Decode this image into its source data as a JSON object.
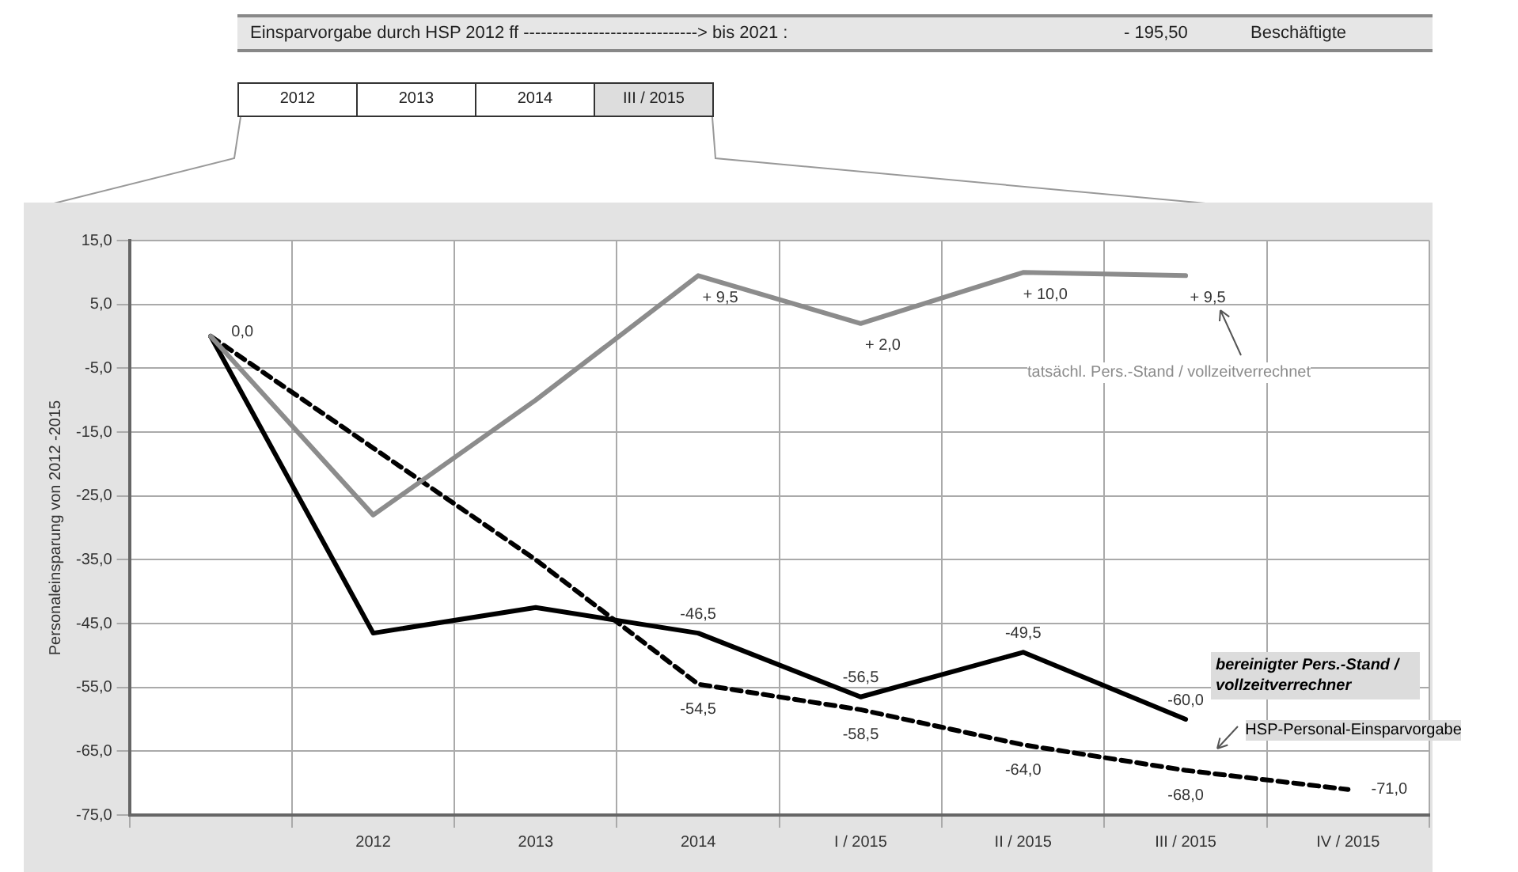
{
  "chart_data": {
    "type": "line",
    "ylabel": "Personaleinsparung von 2012 -2015",
    "categories": [
      null,
      "2012",
      "2013",
      "2014",
      "I / 2015",
      "II / 2015",
      "III / 2015",
      "IV / 2015"
    ],
    "series": [
      {
        "name": "tatsächl. Pers.-Stand / vollzeitverrechnet",
        "color": "#8c8c8c",
        "values": [
          0,
          -28,
          -10,
          9.5,
          2,
          10,
          9.5,
          null
        ],
        "value_labels": [
          "0,0",
          null,
          null,
          "+ 9,5",
          "+ 2,0",
          "+ 10,0",
          "+ 9,5",
          null
        ]
      },
      {
        "name": "bereinigter Pers.-Stand / vollzeitverrechner",
        "color": "#000000",
        "values": [
          0,
          -46.5,
          -42.5,
          -46.5,
          -56.5,
          -49.5,
          -60,
          null
        ],
        "value_labels": [
          null,
          null,
          null,
          "-46,5",
          "-56,5",
          "-49,5",
          "-60,0",
          null
        ]
      },
      {
        "name": "HSP-Personal-Einsparvorgabe",
        "color": "#000000",
        "line_style": "dashed",
        "values": [
          0,
          -17.5,
          -35,
          -54.5,
          -58.5,
          -64,
          -68,
          -71
        ],
        "value_labels": [
          null,
          null,
          null,
          "-54,5",
          "-58,5",
          "-64,0",
          "-68,0",
          "-71,0"
        ]
      }
    ],
    "ylim": [
      -75,
      15
    ],
    "yticks": [
      {
        "value": 15,
        "label": "15,0"
      },
      {
        "value": 5,
        "label": "5,0"
      },
      {
        "value": -5,
        "label": "-5,0"
      },
      {
        "value": -15,
        "label": "-15,0"
      },
      {
        "value": -25,
        "label": "-25,0"
      },
      {
        "value": -35,
        "label": "-35,0"
      },
      {
        "value": -45,
        "label": "-45,0"
      },
      {
        "value": -55,
        "label": "-55,0"
      },
      {
        "value": -65,
        "label": "-65,0"
      },
      {
        "value": -75,
        "label": "-75,0"
      }
    ],
    "grid": true,
    "legend": false,
    "marker": "none",
    "annotations": [
      "Einsparvorgabe  durch  HSP 2012 ff ------------------------------> bis 2021 :",
      "- 195,50",
      "Beschäftigte",
      "2012",
      "2013",
      "2014",
      "III / 2015"
    ]
  }
}
